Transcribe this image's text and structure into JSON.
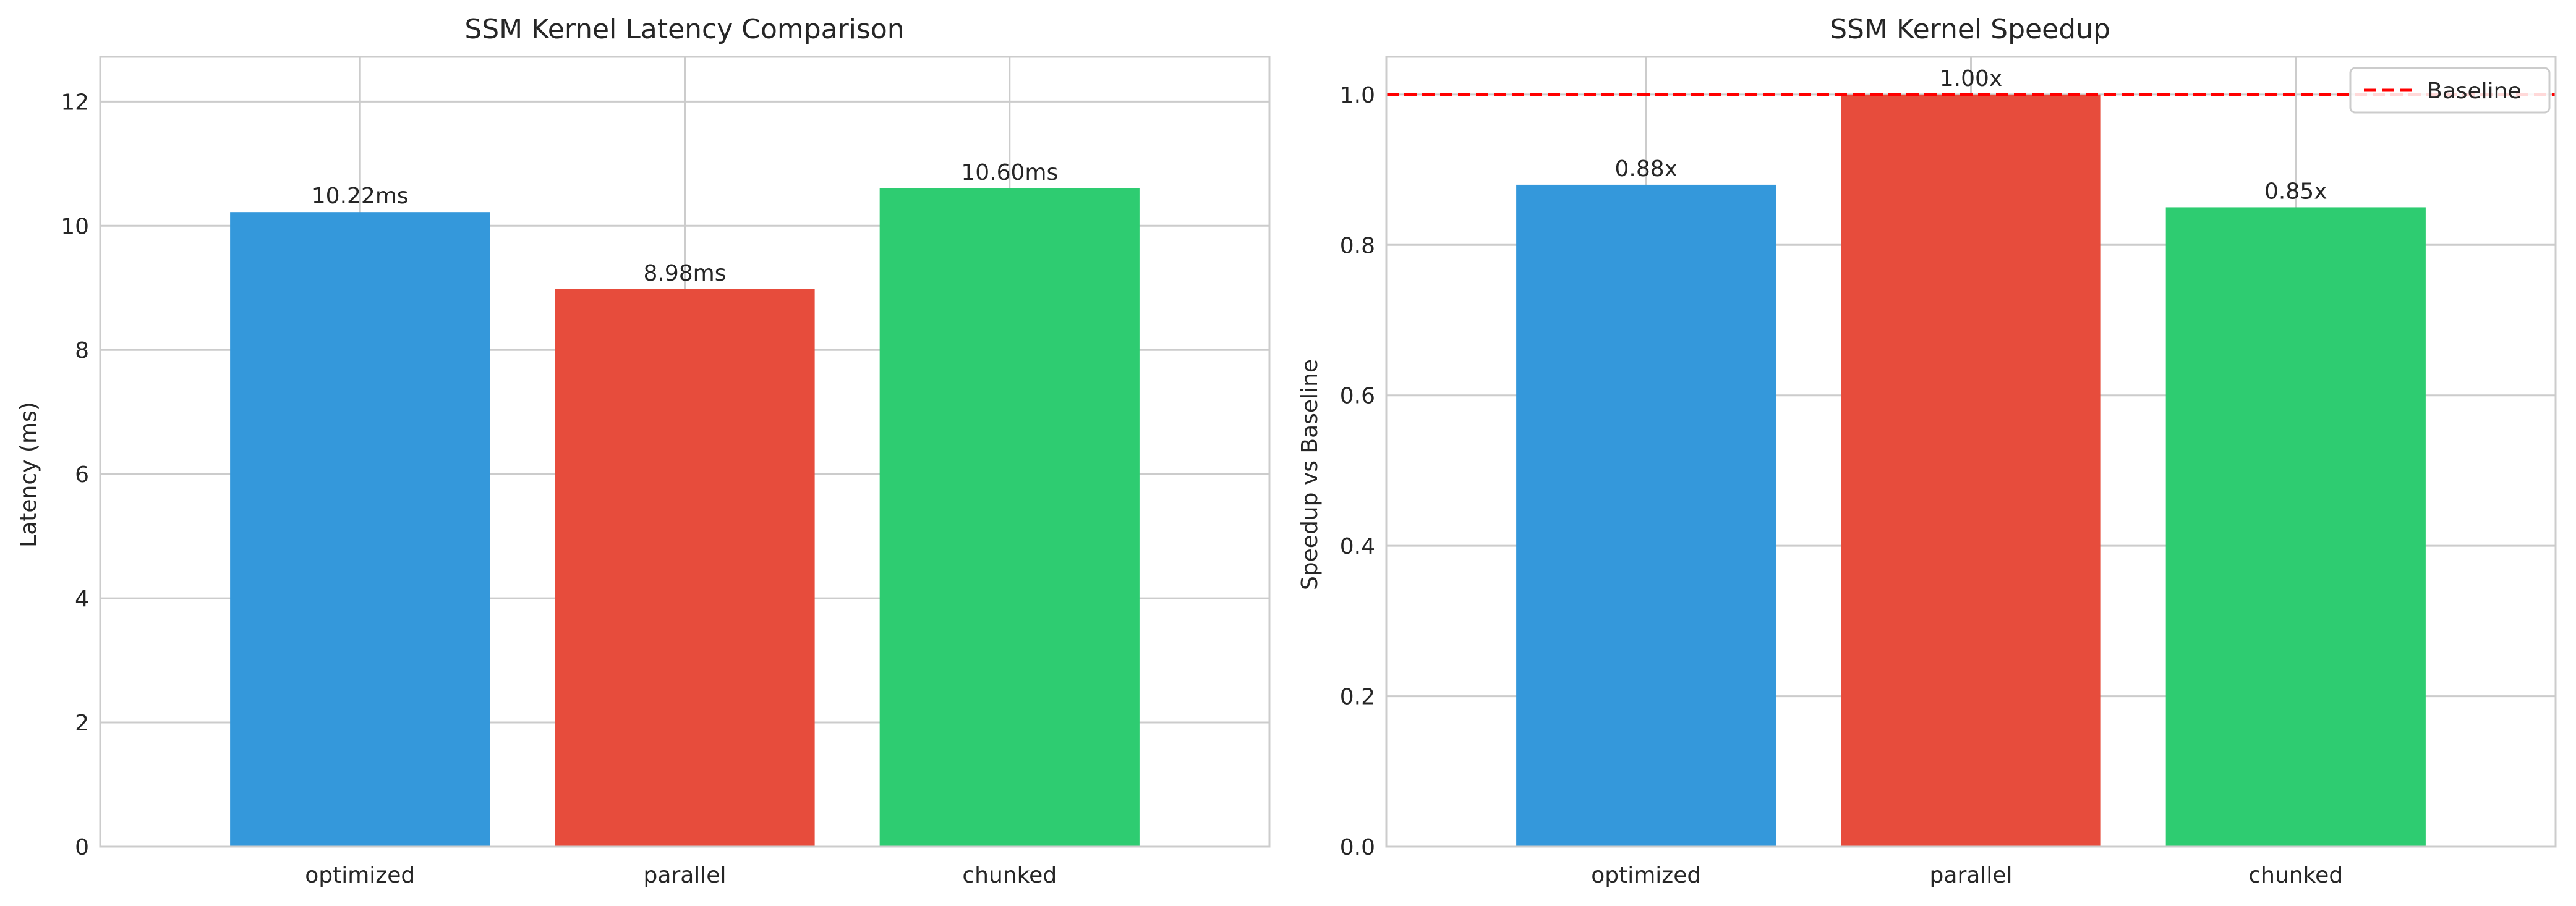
{
  "chart_data": [
    {
      "type": "bar",
      "title": "SSM Kernel Latency Comparison",
      "xlabel": "",
      "ylabel": "Latency (ms)",
      "categories": [
        "optimized",
        "parallel",
        "chunked"
      ],
      "values": [
        10.22,
        8.98,
        10.6
      ],
      "data_labels": [
        "10.22ms",
        "8.98ms",
        "10.60ms"
      ],
      "colors": [
        "#3498db",
        "#e74c3c",
        "#2ecc71"
      ],
      "ylim": [
        0,
        12.72
      ],
      "yticks": [
        0,
        2,
        4,
        6,
        8,
        10,
        12
      ],
      "ytick_labels": [
        "0",
        "2",
        "4",
        "6",
        "8",
        "10",
        "12"
      ],
      "grid": true
    },
    {
      "type": "bar",
      "title": "SSM Kernel Speedup",
      "xlabel": "",
      "ylabel": "Speedup vs Baseline",
      "categories": [
        "optimized",
        "parallel",
        "chunked"
      ],
      "values": [
        0.88,
        1.0,
        0.85
      ],
      "data_labels": [
        "0.88x",
        "1.00x",
        "0.85x"
      ],
      "colors": [
        "#3498db",
        "#e74c3c",
        "#2ecc71"
      ],
      "ylim": [
        0,
        1.05
      ],
      "yticks": [
        0.0,
        0.2,
        0.4,
        0.6,
        0.8,
        1.0
      ],
      "ytick_labels": [
        "0.0",
        "0.2",
        "0.4",
        "0.6",
        "0.8",
        "1.0"
      ],
      "grid": true,
      "reference_line": {
        "y": 1.0,
        "style": "dashed",
        "color": "#ff0000",
        "label": "Baseline"
      },
      "legend": {
        "placement": "top-right",
        "entries": [
          "Baseline"
        ]
      }
    }
  ]
}
